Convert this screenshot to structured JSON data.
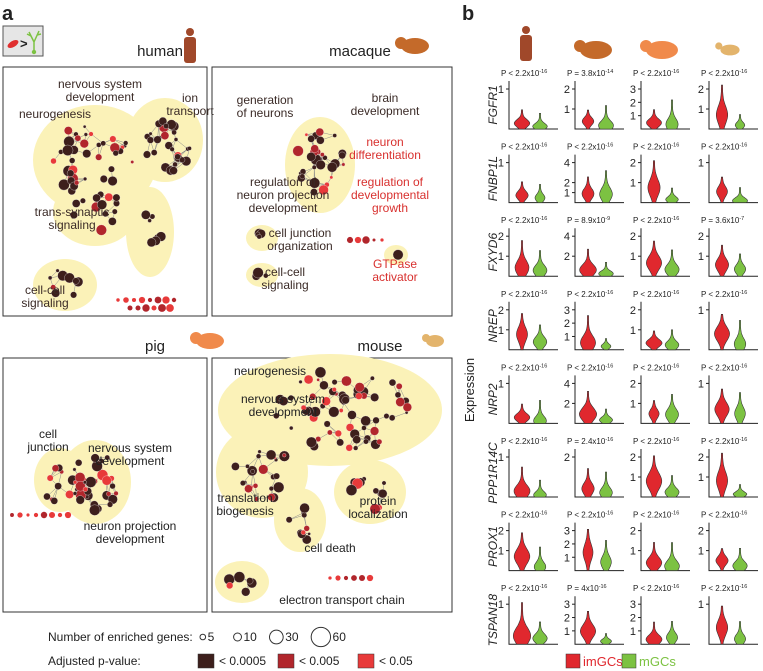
{
  "panel_a": {
    "label": "a",
    "panels": [
      {
        "title": "human",
        "labels": [
          {
            "lines": [
              "nervous system",
              "development"
            ],
            "color": "#3a2a26"
          },
          {
            "lines": [
              "neurogenesis"
            ],
            "color": "#3a2a26"
          },
          {
            "lines": [
              "ion",
              "transport"
            ],
            "color": "#3a2a26"
          },
          {
            "lines": [
              "trans-synaptic",
              "signaling"
            ],
            "color": "#3a2a26"
          },
          {
            "lines": [
              "cell-cell",
              "signaling"
            ],
            "color": "#3a2a26"
          }
        ]
      },
      {
        "title": "macaque",
        "labels": [
          {
            "lines": [
              "generation",
              "of neurons"
            ],
            "color": "#3a2a26"
          },
          {
            "lines": [
              "brain",
              "development"
            ],
            "color": "#3a2a26"
          },
          {
            "lines": [
              "neuron",
              "differentiation"
            ],
            "color": "#d8302e"
          },
          {
            "lines": [
              "regulation of",
              "neuron projection",
              "development"
            ],
            "color": "#3a2a26"
          },
          {
            "lines": [
              "regulation of",
              "developmental",
              "growth"
            ],
            "color": "#d8302e"
          },
          {
            "lines": [
              "cell junction",
              "organization"
            ],
            "color": "#3a2a26"
          },
          {
            "lines": [
              "cell-cell",
              "signaling"
            ],
            "color": "#3a2a26"
          },
          {
            "lines": [
              "GTPase",
              "activator"
            ],
            "color": "#d8302e"
          }
        ]
      },
      {
        "title": "pig",
        "labels": [
          {
            "lines": [
              "cell",
              "junction"
            ],
            "color": "#222"
          },
          {
            "lines": [
              "nervous system",
              "development"
            ],
            "color": "#222"
          },
          {
            "lines": [
              "neuron projection",
              "development"
            ],
            "color": "#222"
          }
        ]
      },
      {
        "title": "mouse",
        "labels": [
          {
            "lines": [
              "neurogenesis"
            ],
            "color": "#222"
          },
          {
            "lines": [
              "nervous system",
              "development"
            ],
            "color": "#222"
          },
          {
            "lines": [
              "translation",
              "biogenesis"
            ],
            "color": "#222"
          },
          {
            "lines": [
              "cell death"
            ],
            "color": "#222"
          },
          {
            "lines": [
              "protein",
              "localization"
            ],
            "color": "#222"
          },
          {
            "lines": [
              "electron transport chain"
            ],
            "color": "#222"
          }
        ]
      }
    ],
    "size_legend": {
      "title": "Number of enriched genes:",
      "gene_counts": [
        5,
        10,
        30,
        60
      ]
    },
    "color_legend": {
      "title": "Adjusted p-value:",
      "items": [
        {
          "label": "< 0.0005",
          "color": "#3d1f1c"
        },
        {
          "label": "< 0.005",
          "color": "#b1262c"
        },
        {
          "label": "< 0.05",
          "color": "#e83a3a"
        }
      ]
    }
  },
  "panel_b": {
    "label": "b",
    "y_label": "Expression",
    "genes": [
      "FGFR1",
      "FNBP1L",
      "FXYD6",
      "NREP",
      "NRP2",
      "PPP1R14C",
      "PROX1",
      "TSPAN18"
    ],
    "p_values": [
      [
        {
          "text": "P < 2.2x10",
          "exp": "-16"
        },
        {
          "text": "P = 3.8x10",
          "exp": "-14"
        },
        {
          "text": "P < 2.2x10",
          "exp": "-16"
        },
        {
          "text": "P < 2.2x10",
          "exp": "-16"
        }
      ],
      [
        {
          "text": "P < 2.2x10",
          "exp": "-16"
        },
        {
          "text": "P < 2.2x10",
          "exp": "-16"
        },
        {
          "text": "P < 2.2x10",
          "exp": "-16"
        },
        {
          "text": "P < 2.2x10",
          "exp": "-16"
        }
      ],
      [
        {
          "text": "P < 2.2x10",
          "exp": "-16"
        },
        {
          "text": "P = 8.9x10",
          "exp": "-9"
        },
        {
          "text": "P < 2.2x10",
          "exp": "-16"
        },
        {
          "text": "P = 3.6x10",
          "exp": "-7"
        }
      ],
      [
        {
          "text": "P < 2.2x10",
          "exp": "-16"
        },
        {
          "text": "P < 2.2x10",
          "exp": "-16"
        },
        {
          "text": "P < 2.2x10",
          "exp": "-16"
        },
        {
          "text": "P < 2.2x10",
          "exp": "-16"
        }
      ],
      [
        {
          "text": "P < 2.2x10",
          "exp": "-16"
        },
        {
          "text": "P < 2.2x10",
          "exp": "-16"
        },
        {
          "text": "P < 2.2x10",
          "exp": "-16"
        },
        {
          "text": "P < 2.2x10",
          "exp": "-16"
        }
      ],
      [
        {
          "text": "P < 2.2x10",
          "exp": "-16"
        },
        {
          "text": "P = 2.4x10",
          "exp": "-16"
        },
        {
          "text": "P < 2.2x10",
          "exp": "-16"
        },
        {
          "text": "P < 2.2x10",
          "exp": "-16"
        }
      ],
      [
        {
          "text": "P < 2.2x10",
          "exp": "-16"
        },
        {
          "text": "P < 2.2x10",
          "exp": "-16"
        },
        {
          "text": "P < 2.2x10",
          "exp": "-16"
        },
        {
          "text": "P < 2.2x10",
          "exp": "-16"
        }
      ],
      [
        {
          "text": "P < 2.2x10",
          "exp": "-16"
        },
        {
          "text": "P = 4x10",
          "exp": "-16"
        },
        {
          "text": "P < 2.2x10",
          "exp": "-16"
        },
        {
          "text": "P < 2.2x10",
          "exp": "-16"
        }
      ]
    ],
    "y_ticks": [
      [
        [
          1
        ],
        [
          2,
          1
        ],
        [
          3,
          2,
          1
        ],
        [
          2,
          1
        ]
      ],
      [
        [
          1
        ],
        [
          4,
          2,
          1
        ],
        [
          2,
          1
        ],
        [
          1
        ]
      ],
      [
        [
          2,
          1
        ],
        [
          4,
          2
        ],
        [
          2,
          1
        ],
        [
          2,
          1
        ]
      ],
      [
        [
          2,
          1
        ],
        [
          3,
          2,
          1
        ],
        [
          2,
          1
        ],
        [
          1
        ]
      ],
      [
        [
          1
        ],
        [
          4,
          2
        ],
        [
          2,
          1
        ],
        [
          1
        ]
      ],
      [
        [
          1
        ],
        [
          2
        ],
        [
          2,
          1
        ],
        [
          2,
          1
        ]
      ],
      [
        [
          2,
          1
        ],
        [
          3,
          2,
          1
        ],
        [
          2,
          1
        ],
        [
          2,
          1
        ]
      ],
      [
        [
          1
        ],
        [
          3,
          2,
          1
        ],
        [
          3,
          2,
          1
        ],
        [
          1
        ]
      ]
    ],
    "legend": [
      {
        "label": "imGCs",
        "color": "#e0282e"
      },
      {
        "label": "mGCs",
        "color": "#7cc242"
      }
    ]
  }
}
